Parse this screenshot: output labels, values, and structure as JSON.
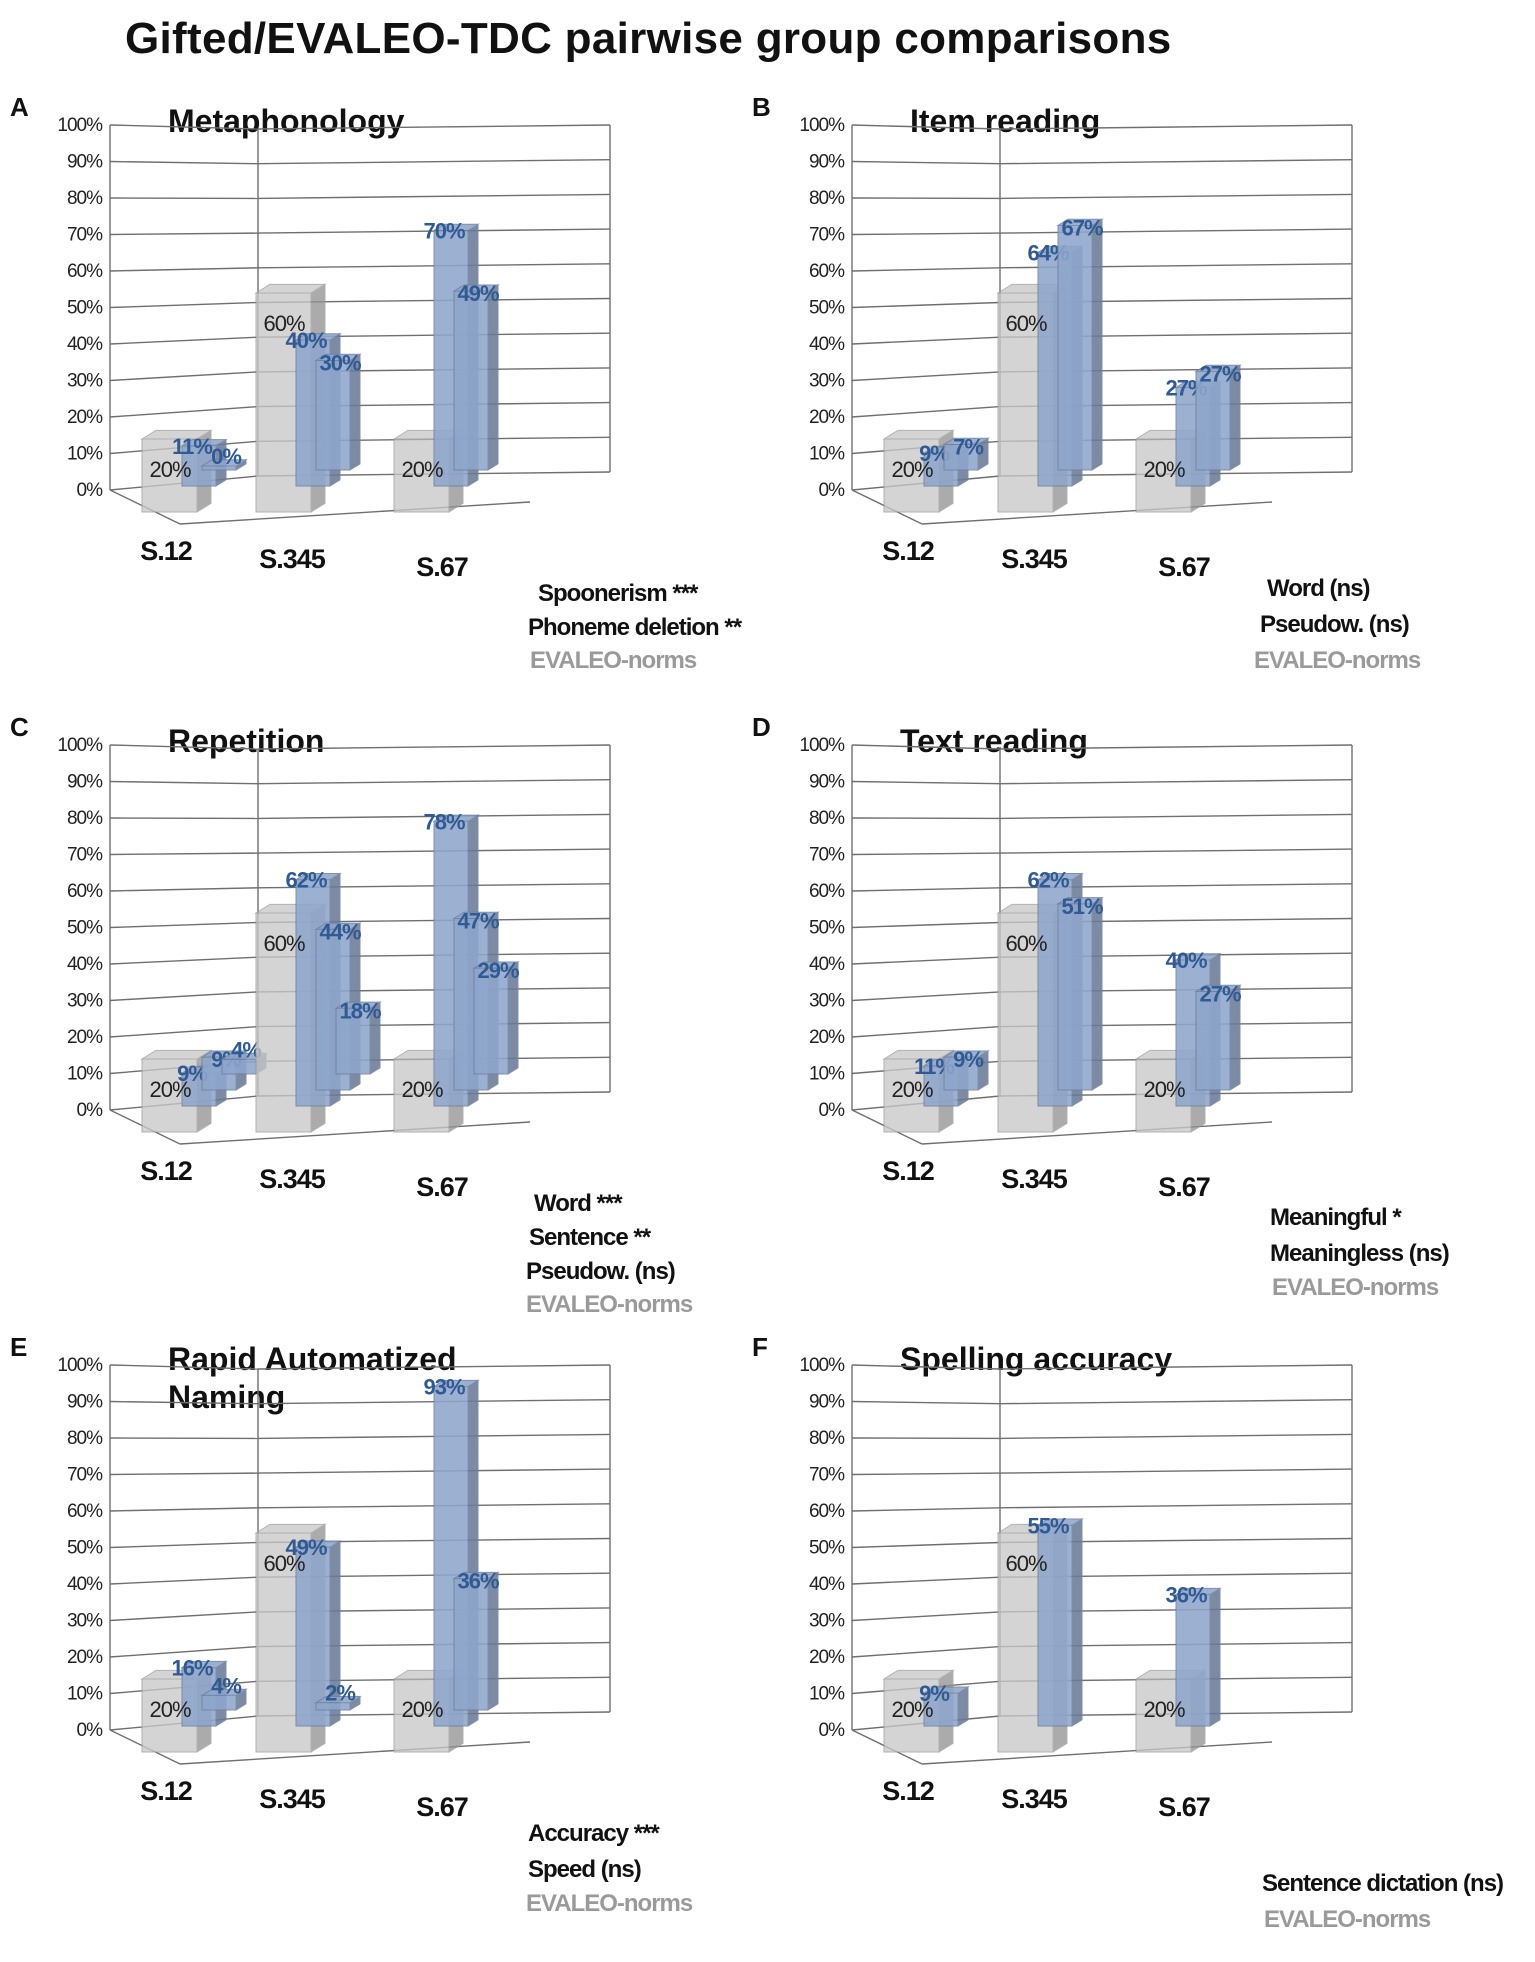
{
  "title": "Gifted/EVALEO-TDC pairwise group comparisons",
  "colors": {
    "norm": "#c8c8c8",
    "gifted": "#8fa6cc",
    "gifted_label": "#2f5a93",
    "grid": "#6f6f6f"
  },
  "chart_data": [
    {
      "panel": "A",
      "title": "Metaphonology",
      "type": "bar",
      "yticks": [
        "0%",
        "10%",
        "20%",
        "30%",
        "40%",
        "50%",
        "60%",
        "70%",
        "80%",
        "90%",
        "100%"
      ],
      "ylim": [
        0,
        100
      ],
      "categories": [
        "S.12",
        "S.345",
        "S.67"
      ],
      "norms": {
        "name": "EVALEO-norms",
        "values": [
          20,
          60,
          20
        ],
        "labels": [
          "20%",
          "60%",
          "20%"
        ]
      },
      "series": [
        {
          "name": "Spoonerism ***",
          "values": [
            11,
            40,
            70
          ],
          "labels": [
            "11%",
            "40%",
            "70%"
          ]
        },
        {
          "name": "Phoneme deletion **",
          "values": [
            0,
            30,
            49
          ],
          "labels": [
            "0%",
            "30%",
            "49%"
          ]
        }
      ]
    },
    {
      "panel": "B",
      "title": "Item reading",
      "type": "bar",
      "yticks": [
        "0%",
        "10%",
        "20%",
        "30%",
        "40%",
        "50%",
        "60%",
        "70%",
        "80%",
        "90%",
        "100%"
      ],
      "ylim": [
        0,
        100
      ],
      "categories": [
        "S.12",
        "S.345",
        "S.67"
      ],
      "norms": {
        "name": "EVALEO-norms",
        "values": [
          20,
          60,
          20
        ],
        "labels": [
          "20%",
          "60%",
          "20%"
        ]
      },
      "series": [
        {
          "name": "Word (ns)",
          "values": [
            9,
            64,
            27
          ],
          "labels": [
            "9%",
            "64%",
            "27%"
          ]
        },
        {
          "name": "Pseudow. (ns)",
          "values": [
            7,
            67,
            27
          ],
          "labels": [
            "7%",
            "67%",
            "27%"
          ]
        }
      ]
    },
    {
      "panel": "C",
      "title": "Repetition",
      "type": "bar",
      "yticks": [
        "0%",
        "10%",
        "20%",
        "30%",
        "40%",
        "50%",
        "60%",
        "70%",
        "80%",
        "90%",
        "100%"
      ],
      "ylim": [
        0,
        100
      ],
      "categories": [
        "S.12",
        "S.345",
        "S.67"
      ],
      "norms": {
        "name": "EVALEO-norms",
        "values": [
          20,
          60,
          20
        ],
        "labels": [
          "20%",
          "60%",
          "20%"
        ]
      },
      "series": [
        {
          "name": "Word ***",
          "values": [
            9,
            62,
            78
          ],
          "labels": [
            "9%",
            "62%",
            "78%"
          ]
        },
        {
          "name": "Sentence **",
          "values": [
            9,
            44,
            47
          ],
          "labels": [
            "9%",
            "44%",
            "47%"
          ]
        },
        {
          "name": "Pseudow. (ns)",
          "values": [
            4,
            18,
            29
          ],
          "labels": [
            "4%",
            "18%",
            "29%"
          ]
        }
      ]
    },
    {
      "panel": "D",
      "title": "Text reading",
      "type": "bar",
      "yticks": [
        "0%",
        "10%",
        "20%",
        "30%",
        "40%",
        "50%",
        "60%",
        "70%",
        "80%",
        "90%",
        "100%"
      ],
      "ylim": [
        0,
        100
      ],
      "categories": [
        "S.12",
        "S.345",
        "S.67"
      ],
      "norms": {
        "name": "EVALEO-norms",
        "values": [
          20,
          60,
          20
        ],
        "labels": [
          "20%",
          "60%",
          "20%"
        ]
      },
      "series": [
        {
          "name": "Meaningful *",
          "values": [
            11,
            62,
            40
          ],
          "labels": [
            "11%",
            "62%",
            "40%"
          ]
        },
        {
          "name": "Meaningless (ns)",
          "values": [
            9,
            51,
            27
          ],
          "labels": [
            "9%",
            "51%",
            "27%"
          ]
        }
      ]
    },
    {
      "panel": "E",
      "title": "Rapid Automatized\nNaming",
      "type": "bar",
      "yticks": [
        "0%",
        "10%",
        "20%",
        "30%",
        "40%",
        "50%",
        "60%",
        "70%",
        "80%",
        "90%",
        "100%"
      ],
      "ylim": [
        0,
        100
      ],
      "categories": [
        "S.12",
        "S.345",
        "S.67"
      ],
      "norms": {
        "name": "EVALEO-norms",
        "values": [
          20,
          60,
          20
        ],
        "labels": [
          "20%",
          "60%",
          "20%"
        ]
      },
      "series": [
        {
          "name": "Accuracy ***",
          "values": [
            16,
            49,
            93
          ],
          "labels": [
            "16%",
            "49%",
            "93%"
          ]
        },
        {
          "name": "Speed (ns)",
          "values": [
            4,
            2,
            36
          ],
          "labels": [
            "4%",
            "2%",
            "36%"
          ]
        }
      ]
    },
    {
      "panel": "F",
      "title": "Spelling accuracy",
      "type": "bar",
      "yticks": [
        "0%",
        "10%",
        "20%",
        "30%",
        "40%",
        "50%",
        "60%",
        "70%",
        "80%",
        "90%",
        "100%"
      ],
      "ylim": [
        0,
        100
      ],
      "categories": [
        "S.12",
        "S.345",
        "S.67"
      ],
      "norms": {
        "name": "EVALEO-norms",
        "values": [
          20,
          60,
          20
        ],
        "labels": [
          "20%",
          "60%",
          "20%"
        ]
      },
      "series": [
        {
          "name": "Sentence dictation (ns)",
          "values": [
            9,
            55,
            36
          ],
          "labels": [
            "9%",
            "55%",
            "36%"
          ]
        }
      ]
    }
  ]
}
